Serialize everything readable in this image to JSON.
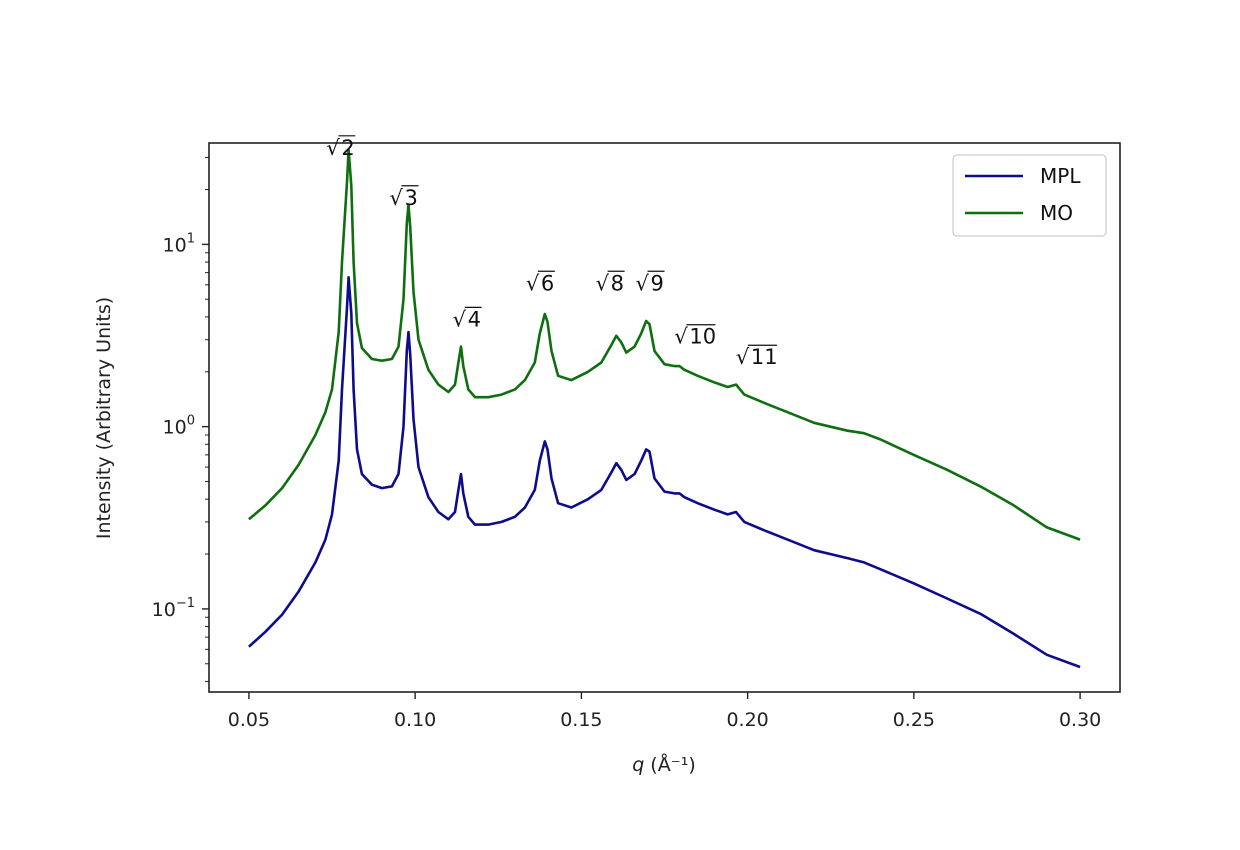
{
  "chart_data": {
    "type": "line",
    "title": "",
    "xlabel": "q (Å⁻¹)",
    "ylabel": "Intensity (Arbitrary Units)",
    "xlim": [
      0.038,
      0.312
    ],
    "ylim": [
      0.035,
      36
    ],
    "yscale": "log",
    "grid": false,
    "legend": "top-right",
    "x_ticks": [
      0.05,
      0.1,
      0.15,
      0.2,
      0.25,
      0.3
    ],
    "x_tick_labels": [
      "0.05",
      "0.10",
      "0.15",
      "0.20",
      "0.25",
      "0.30"
    ],
    "y_ticks": [
      0.1,
      1,
      10
    ],
    "y_tick_labels": [
      {
        "base": "10",
        "exp": "−1"
      },
      {
        "base": "10",
        "exp": "0"
      },
      {
        "base": "10",
        "exp": "1"
      }
    ],
    "series": [
      {
        "name": "MPL",
        "color": "#0d0d8c",
        "points": [
          [
            0.05,
            0.062
          ],
          [
            0.055,
            0.075
          ],
          [
            0.06,
            0.093
          ],
          [
            0.065,
            0.125
          ],
          [
            0.07,
            0.18
          ],
          [
            0.073,
            0.24
          ],
          [
            0.075,
            0.33
          ],
          [
            0.077,
            0.65
          ],
          [
            0.078,
            1.6
          ],
          [
            0.0795,
            4.5
          ],
          [
            0.08,
            6.6
          ],
          [
            0.0808,
            4.2
          ],
          [
            0.0815,
            1.6
          ],
          [
            0.0825,
            0.75
          ],
          [
            0.084,
            0.55
          ],
          [
            0.087,
            0.48
          ],
          [
            0.09,
            0.46
          ],
          [
            0.093,
            0.47
          ],
          [
            0.095,
            0.55
          ],
          [
            0.0965,
            1.0
          ],
          [
            0.0975,
            2.6
          ],
          [
            0.098,
            3.3
          ],
          [
            0.0985,
            2.5
          ],
          [
            0.0995,
            1.1
          ],
          [
            0.101,
            0.6
          ],
          [
            0.104,
            0.41
          ],
          [
            0.107,
            0.34
          ],
          [
            0.11,
            0.31
          ],
          [
            0.112,
            0.34
          ],
          [
            0.113,
            0.45
          ],
          [
            0.1138,
            0.55
          ],
          [
            0.1145,
            0.43
          ],
          [
            0.116,
            0.32
          ],
          [
            0.118,
            0.29
          ],
          [
            0.122,
            0.29
          ],
          [
            0.126,
            0.3
          ],
          [
            0.13,
            0.32
          ],
          [
            0.133,
            0.36
          ],
          [
            0.136,
            0.45
          ],
          [
            0.1375,
            0.65
          ],
          [
            0.139,
            0.83
          ],
          [
            0.1398,
            0.75
          ],
          [
            0.141,
            0.52
          ],
          [
            0.143,
            0.38
          ],
          [
            0.147,
            0.36
          ],
          [
            0.152,
            0.4
          ],
          [
            0.156,
            0.45
          ],
          [
            0.159,
            0.56
          ],
          [
            0.1605,
            0.63
          ],
          [
            0.162,
            0.58
          ],
          [
            0.1635,
            0.51
          ],
          [
            0.166,
            0.55
          ],
          [
            0.168,
            0.65
          ],
          [
            0.1695,
            0.75
          ],
          [
            0.1705,
            0.73
          ],
          [
            0.172,
            0.52
          ],
          [
            0.175,
            0.44
          ],
          [
            0.178,
            0.43
          ],
          [
            0.1795,
            0.43
          ],
          [
            0.181,
            0.41
          ],
          [
            0.185,
            0.38
          ],
          [
            0.19,
            0.35
          ],
          [
            0.194,
            0.33
          ],
          [
            0.1965,
            0.34
          ],
          [
            0.199,
            0.3
          ],
          [
            0.205,
            0.27
          ],
          [
            0.212,
            0.24
          ],
          [
            0.22,
            0.21
          ],
          [
            0.23,
            0.19
          ],
          [
            0.235,
            0.18
          ],
          [
            0.24,
            0.165
          ],
          [
            0.25,
            0.138
          ],
          [
            0.26,
            0.114
          ],
          [
            0.27,
            0.094
          ],
          [
            0.28,
            0.073
          ],
          [
            0.29,
            0.056
          ],
          [
            0.3,
            0.048
          ]
        ]
      },
      {
        "name": "MO",
        "color": "#0f6e0f",
        "points": [
          [
            0.05,
            0.31
          ],
          [
            0.055,
            0.37
          ],
          [
            0.06,
            0.46
          ],
          [
            0.065,
            0.62
          ],
          [
            0.07,
            0.9
          ],
          [
            0.073,
            1.2
          ],
          [
            0.075,
            1.6
          ],
          [
            0.077,
            3.3
          ],
          [
            0.078,
            8.0
          ],
          [
            0.0795,
            22.0
          ],
          [
            0.08,
            33.0
          ],
          [
            0.0808,
            21.0
          ],
          [
            0.0815,
            8.0
          ],
          [
            0.0825,
            3.7
          ],
          [
            0.084,
            2.7
          ],
          [
            0.087,
            2.35
          ],
          [
            0.09,
            2.3
          ],
          [
            0.093,
            2.35
          ],
          [
            0.095,
            2.75
          ],
          [
            0.0965,
            5.0
          ],
          [
            0.0975,
            13.0
          ],
          [
            0.098,
            16.5
          ],
          [
            0.0985,
            12.5
          ],
          [
            0.0995,
            5.5
          ],
          [
            0.101,
            3.0
          ],
          [
            0.104,
            2.05
          ],
          [
            0.107,
            1.7
          ],
          [
            0.11,
            1.55
          ],
          [
            0.112,
            1.7
          ],
          [
            0.113,
            2.25
          ],
          [
            0.1138,
            2.75
          ],
          [
            0.1145,
            2.15
          ],
          [
            0.116,
            1.6
          ],
          [
            0.118,
            1.45
          ],
          [
            0.122,
            1.45
          ],
          [
            0.126,
            1.5
          ],
          [
            0.13,
            1.6
          ],
          [
            0.133,
            1.8
          ],
          [
            0.136,
            2.25
          ],
          [
            0.1375,
            3.25
          ],
          [
            0.139,
            4.15
          ],
          [
            0.1398,
            3.75
          ],
          [
            0.141,
            2.6
          ],
          [
            0.143,
            1.9
          ],
          [
            0.147,
            1.8
          ],
          [
            0.152,
            2.0
          ],
          [
            0.156,
            2.25
          ],
          [
            0.159,
            2.8
          ],
          [
            0.1605,
            3.15
          ],
          [
            0.162,
            2.9
          ],
          [
            0.1635,
            2.55
          ],
          [
            0.166,
            2.75
          ],
          [
            0.168,
            3.25
          ],
          [
            0.1695,
            3.8
          ],
          [
            0.1705,
            3.65
          ],
          [
            0.172,
            2.6
          ],
          [
            0.175,
            2.2
          ],
          [
            0.178,
            2.15
          ],
          [
            0.1795,
            2.15
          ],
          [
            0.181,
            2.05
          ],
          [
            0.185,
            1.9
          ],
          [
            0.19,
            1.75
          ],
          [
            0.194,
            1.65
          ],
          [
            0.1965,
            1.7
          ],
          [
            0.199,
            1.5
          ],
          [
            0.205,
            1.35
          ],
          [
            0.212,
            1.2
          ],
          [
            0.22,
            1.05
          ],
          [
            0.23,
            0.95
          ],
          [
            0.235,
            0.92
          ],
          [
            0.24,
            0.85
          ],
          [
            0.25,
            0.7
          ],
          [
            0.26,
            0.58
          ],
          [
            0.27,
            0.47
          ],
          [
            0.28,
            0.37
          ],
          [
            0.29,
            0.28
          ],
          [
            0.3,
            0.24
          ]
        ]
      }
    ],
    "annotations": [
      {
        "radicand": "2",
        "x": 0.0775,
        "y": 31
      },
      {
        "radicand": "3",
        "x": 0.0965,
        "y": 16.5
      },
      {
        "radicand": "4",
        "x": 0.1155,
        "y": 3.55
      },
      {
        "radicand": "6",
        "x": 0.1375,
        "y": 5.6
      },
      {
        "radicand": "8",
        "x": 0.1585,
        "y": 5.6
      },
      {
        "radicand": "9",
        "x": 0.1705,
        "y": 5.6
      },
      {
        "radicand": "10",
        "x": 0.184,
        "y": 2.85
      },
      {
        "radicand": "11",
        "x": 0.2025,
        "y": 2.2
      }
    ]
  }
}
